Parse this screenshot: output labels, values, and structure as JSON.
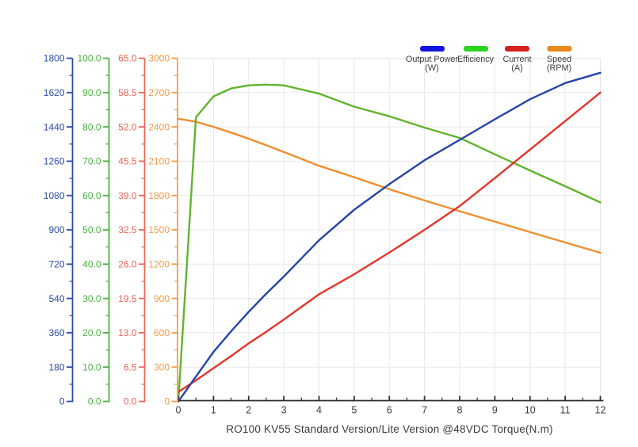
{
  "title": "RO100 KV55 Standard Version/Lite Version @48VDC Torque(N.m)",
  "legend": [
    {
      "name": "output-power",
      "label_lines": [
        "Output Power",
        "(W)"
      ],
      "swatch_color": "#1313e0"
    },
    {
      "name": "efficiency",
      "label_lines": [
        "Efficiency"
      ],
      "swatch_color": "#2ad41f"
    },
    {
      "name": "current",
      "label_lines": [
        "Current",
        "(A)"
      ],
      "swatch_color": "#d62020"
    },
    {
      "name": "speed",
      "label_lines": [
        "Speed",
        "(RPM)"
      ],
      "swatch_color": "#e8891c"
    }
  ],
  "chart_data": {
    "type": "line",
    "title": "RO100 KV55 Standard Version/Lite Version @48VDC Torque(N.m)",
    "xlabel": "Torque(N.m)",
    "grid": true,
    "legend_position": "top-right",
    "x_axis": {
      "min": 0,
      "max": 12,
      "tick_labels": [
        "0",
        "1",
        "2",
        "3",
        "4",
        "5",
        "6",
        "7",
        "8",
        "9",
        "10",
        "11",
        "12"
      ],
      "minor_tick_step": 0.5,
      "line_color": "#2b2b2b",
      "label_color": "#3b3b3b"
    },
    "y_axes": [
      {
        "id": "power",
        "name": "Output Power (W)",
        "min": 0,
        "max": 1800,
        "color": "#2d4ca5",
        "tick_labels": [
          "0",
          "180",
          "360",
          "540",
          "720",
          "900",
          "1080",
          "1260",
          "1440",
          "1620",
          "1800"
        ]
      },
      {
        "id": "efficiency",
        "name": "Efficiency",
        "min": 0,
        "max": 100,
        "color": "#47b43c",
        "tick_labels": [
          "0.0",
          "10.0",
          "20.0",
          "30.0",
          "40.0",
          "50.0",
          "60.0",
          "70.0",
          "80.0",
          "90.0",
          "100.0"
        ]
      },
      {
        "id": "current",
        "name": "Current (A)",
        "min": 0,
        "max": 65,
        "color": "#ec665a",
        "tick_labels": [
          "0.0",
          "6.5",
          "13.0",
          "19.5",
          "26.0",
          "32.5",
          "39.0",
          "45.5",
          "52.0",
          "58.5",
          "65.0"
        ]
      },
      {
        "id": "speed",
        "name": "Speed (RPM)",
        "min": 0,
        "max": 3000,
        "color": "#f49b45",
        "tick_labels": [
          "0",
          "300",
          "600",
          "900",
          "1200",
          "1500",
          "1800",
          "2100",
          "2400",
          "2700",
          "3000"
        ]
      }
    ],
    "x": [
      0,
      0.25,
      0.5,
      1,
      1.5,
      2,
      2.5,
      3,
      4,
      5,
      6,
      7,
      8,
      9,
      10,
      11,
      12
    ],
    "series": [
      {
        "name": "Output Power (W)",
        "axis": "power",
        "color": "#2444a8",
        "values": [
          0,
          65,
          130,
          260,
          368,
          470,
          565,
          655,
          845,
          1005,
          1140,
          1265,
          1372,
          1480,
          1585,
          1670,
          1724
        ]
      },
      {
        "name": "Efficiency",
        "axis": "efficiency",
        "color": "#61b42d",
        "values": [
          0,
          41,
          82.8,
          88.9,
          91.2,
          92.1,
          92.3,
          92.1,
          89.7,
          85.9,
          83.1,
          79.8,
          76.8,
          72.0,
          67.3,
          62.7,
          58.0
        ]
      },
      {
        "name": "Current (A)",
        "axis": "current",
        "color": "#e6342a",
        "values": [
          1.8,
          2.9,
          4.0,
          6.3,
          8.6,
          11.0,
          13.2,
          15.5,
          20.3,
          24.1,
          28.2,
          32.5,
          37.0,
          42.3,
          47.7,
          53.1,
          58.5
        ]
      },
      {
        "name": "Speed (RPM)",
        "axis": "speed",
        "color": "#f08e2d",
        "values": [
          2470,
          2458,
          2445,
          2400,
          2350,
          2297,
          2240,
          2181,
          2060,
          1960,
          1855,
          1757,
          1663,
          1572,
          1480,
          1390,
          1299
        ]
      }
    ],
    "grid_color": "#e7e7e7"
  }
}
